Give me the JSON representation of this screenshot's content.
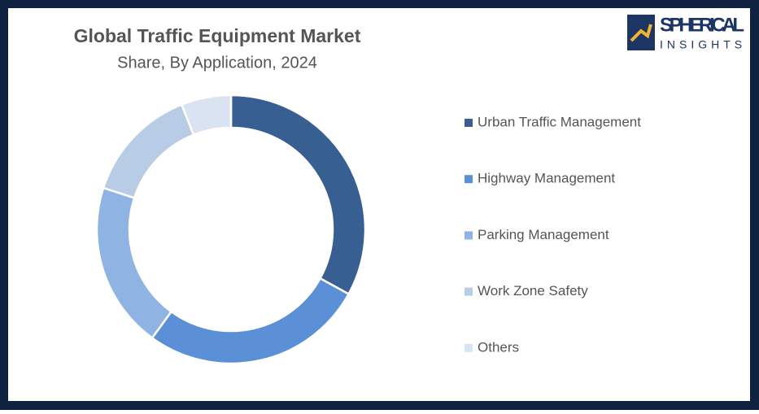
{
  "chart_data": {
    "type": "donut",
    "title": "Global Traffic Equipment Market",
    "subtitle": "Share, By Application, 2024",
    "categories": [
      "Urban Traffic Management",
      "Highway Management",
      "Parking Management",
      "Work Zone Safety",
      "Others"
    ],
    "values": [
      33,
      27,
      20,
      14,
      6
    ],
    "colors": [
      "#375f91",
      "#5b8fd6",
      "#8fb3e3",
      "#b8cce6",
      "#d9e3f1"
    ],
    "legend": "right"
  },
  "logo": {
    "line1": "SPHERICAL",
    "line2": "INSIGHTS"
  }
}
